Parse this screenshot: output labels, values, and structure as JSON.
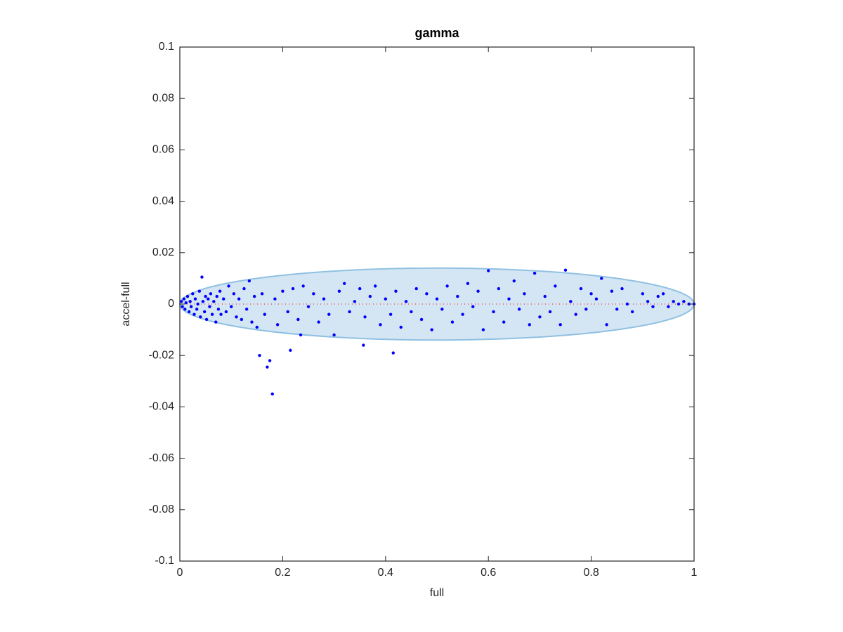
{
  "chart_data": {
    "type": "scatter",
    "title": "gamma",
    "x_label": "full",
    "y_label": "accel-full",
    "xlim": [
      0,
      1
    ],
    "ylim": [
      -0.1,
      0.1
    ],
    "xticks": [
      0,
      0.2,
      0.4,
      0.6,
      0.8,
      1
    ],
    "yticks": [
      -0.1,
      -0.08,
      -0.06,
      -0.04,
      -0.02,
      0,
      0.02,
      0.04,
      0.06,
      0.08,
      0.1
    ],
    "ellipse": {
      "center": [
        0.5,
        0
      ],
      "radii": [
        0.5,
        0.014
      ],
      "color": "#d4e6f3",
      "edge_color": "#8fc0e2"
    },
    "reference_line": {
      "x": [
        0,
        1
      ],
      "y": [
        0,
        0
      ],
      "color": "#ff0000"
    },
    "series": [
      {
        "color": "#0000ff",
        "x": [
          0.003,
          0.005,
          0.008,
          0.01,
          0.012,
          0.015,
          0.018,
          0.02,
          0.022,
          0.025,
          0.028,
          0.03,
          0.033,
          0.035,
          0.038,
          0.04,
          0.043,
          0.045,
          0.048,
          0.05,
          0.052,
          0.055,
          0.058,
          0.06,
          0.063,
          0.066,
          0.07,
          0.072,
          0.075,
          0.078,
          0.08,
          0.085,
          0.09,
          0.095,
          0.1,
          0.105,
          0.11,
          0.115,
          0.12,
          0.125,
          0.13,
          0.135,
          0.14,
          0.145,
          0.15,
          0.155,
          0.16,
          0.165,
          0.17,
          0.175,
          0.18,
          0.185,
          0.19,
          0.2,
          0.21,
          0.215,
          0.22,
          0.23,
          0.235,
          0.24,
          0.25,
          0.26,
          0.27,
          0.28,
          0.29,
          0.3,
          0.31,
          0.32,
          0.33,
          0.34,
          0.35,
          0.357,
          0.36,
          0.37,
          0.38,
          0.39,
          0.4,
          0.41,
          0.415,
          0.42,
          0.43,
          0.44,
          0.45,
          0.46,
          0.47,
          0.48,
          0.49,
          0.5,
          0.51,
          0.52,
          0.53,
          0.54,
          0.55,
          0.56,
          0.57,
          0.58,
          0.59,
          0.6,
          0.61,
          0.62,
          0.63,
          0.64,
          0.65,
          0.66,
          0.67,
          0.68,
          0.69,
          0.7,
          0.71,
          0.72,
          0.73,
          0.74,
          0.75,
          0.76,
          0.77,
          0.78,
          0.79,
          0.8,
          0.81,
          0.82,
          0.83,
          0.84,
          0.85,
          0.86,
          0.87,
          0.88,
          0.9,
          0.91,
          0.92,
          0.93,
          0.94,
          0.95,
          0.96,
          0.97,
          0.98,
          0.99,
          1.0
        ],
        "values": [
          0.001,
          -0.001,
          0.002,
          -0.002,
          0.0005,
          0.003,
          -0.003,
          0.001,
          -0.001,
          0.004,
          -0.004,
          0.002,
          -0.002,
          0.0,
          0.005,
          -0.005,
          0.0105,
          0.001,
          -0.003,
          0.003,
          -0.006,
          0.002,
          -0.001,
          0.004,
          -0.004,
          0.001,
          -0.007,
          0.003,
          -0.002,
          0.005,
          -0.004,
          0.002,
          -0.003,
          0.007,
          -0.001,
          0.004,
          -0.005,
          0.002,
          -0.006,
          0.006,
          -0.002,
          0.009,
          -0.007,
          0.003,
          -0.009,
          -0.02,
          0.004,
          -0.004,
          -0.0245,
          -0.022,
          -0.035,
          0.002,
          -0.008,
          0.005,
          -0.003,
          -0.018,
          0.006,
          -0.006,
          -0.012,
          0.007,
          -0.001,
          0.004,
          -0.007,
          0.002,
          -0.004,
          -0.012,
          0.005,
          0.008,
          -0.003,
          0.001,
          0.006,
          -0.016,
          -0.005,
          0.003,
          0.007,
          -0.008,
          0.002,
          -0.004,
          -0.019,
          0.005,
          -0.009,
          0.001,
          -0.003,
          0.006,
          -0.006,
          0.004,
          -0.01,
          0.002,
          -0.002,
          0.007,
          -0.007,
          0.003,
          -0.004,
          0.008,
          -0.001,
          0.005,
          -0.01,
          0.013,
          -0.003,
          0.006,
          -0.007,
          0.002,
          0.009,
          -0.002,
          0.004,
          -0.008,
          0.012,
          -0.005,
          0.003,
          -0.003,
          0.007,
          -0.008,
          0.0132,
          0.001,
          -0.004,
          0.006,
          -0.002,
          0.004,
          0.002,
          0.01,
          -0.008,
          0.005,
          -0.002,
          0.006,
          0.0,
          -0.003,
          0.004,
          0.001,
          -0.001,
          0.003,
          0.004,
          -0.001,
          0.001,
          0.0,
          0.001,
          0.0,
          0.0
        ]
      }
    ]
  }
}
